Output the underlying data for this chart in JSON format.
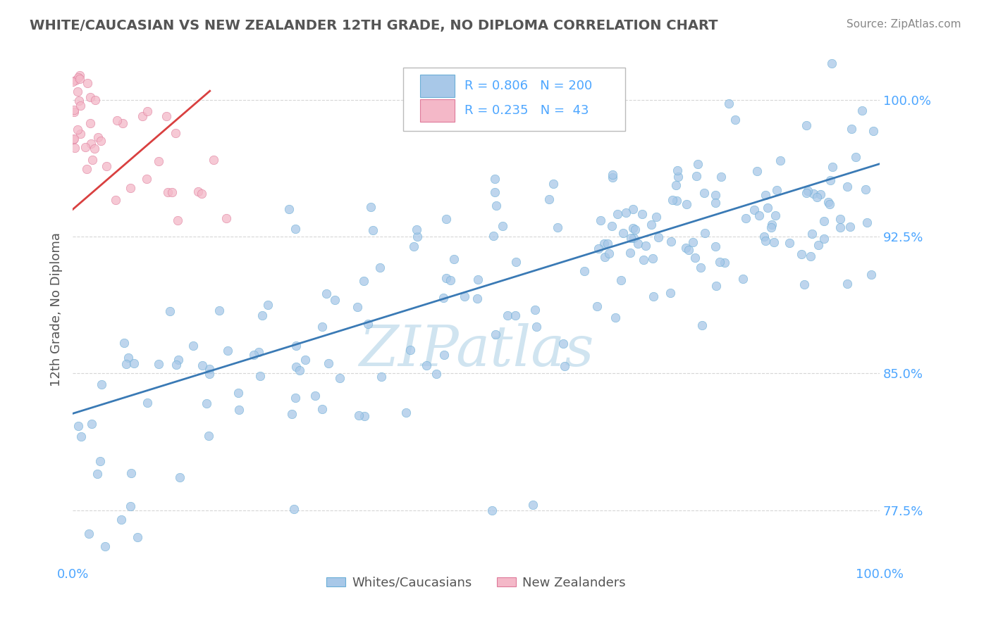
{
  "title": "WHITE/CAUCASIAN VS NEW ZEALANDER 12TH GRADE, NO DIPLOMA CORRELATION CHART",
  "source": "Source: ZipAtlas.com",
  "ylabel": "12th Grade, No Diploma",
  "xlim": [
    0.0,
    1.0
  ],
  "ylim": [
    0.745,
    1.025
  ],
  "yticks": [
    0.775,
    0.85,
    0.925,
    1.0
  ],
  "ytick_labels": [
    "77.5%",
    "85.0%",
    "92.5%",
    "100.0%"
  ],
  "legend_blue_r": "0.806",
  "legend_blue_n": "200",
  "legend_pink_r": "0.235",
  "legend_pink_n": "43",
  "legend_label_blue": "Whites/Caucasians",
  "legend_label_pink": "New Zealanders",
  "blue_color": "#a8c8e8",
  "blue_edge_color": "#6baed6",
  "pink_color": "#f4b8c8",
  "pink_edge_color": "#de7a9a",
  "line_blue_color": "#3a7ab5",
  "line_pink_color": "#d94040",
  "title_color": "#555555",
  "tick_color": "#4da6ff",
  "watermark_color": "#d0e4f0",
  "background_color": "#ffffff",
  "grid_color": "#cccccc",
  "blue_line_y0": 0.828,
  "blue_line_y1": 0.965,
  "pink_line_x0": 0.0,
  "pink_line_x1": 0.17,
  "pink_line_y0": 0.94,
  "pink_line_y1": 1.005
}
